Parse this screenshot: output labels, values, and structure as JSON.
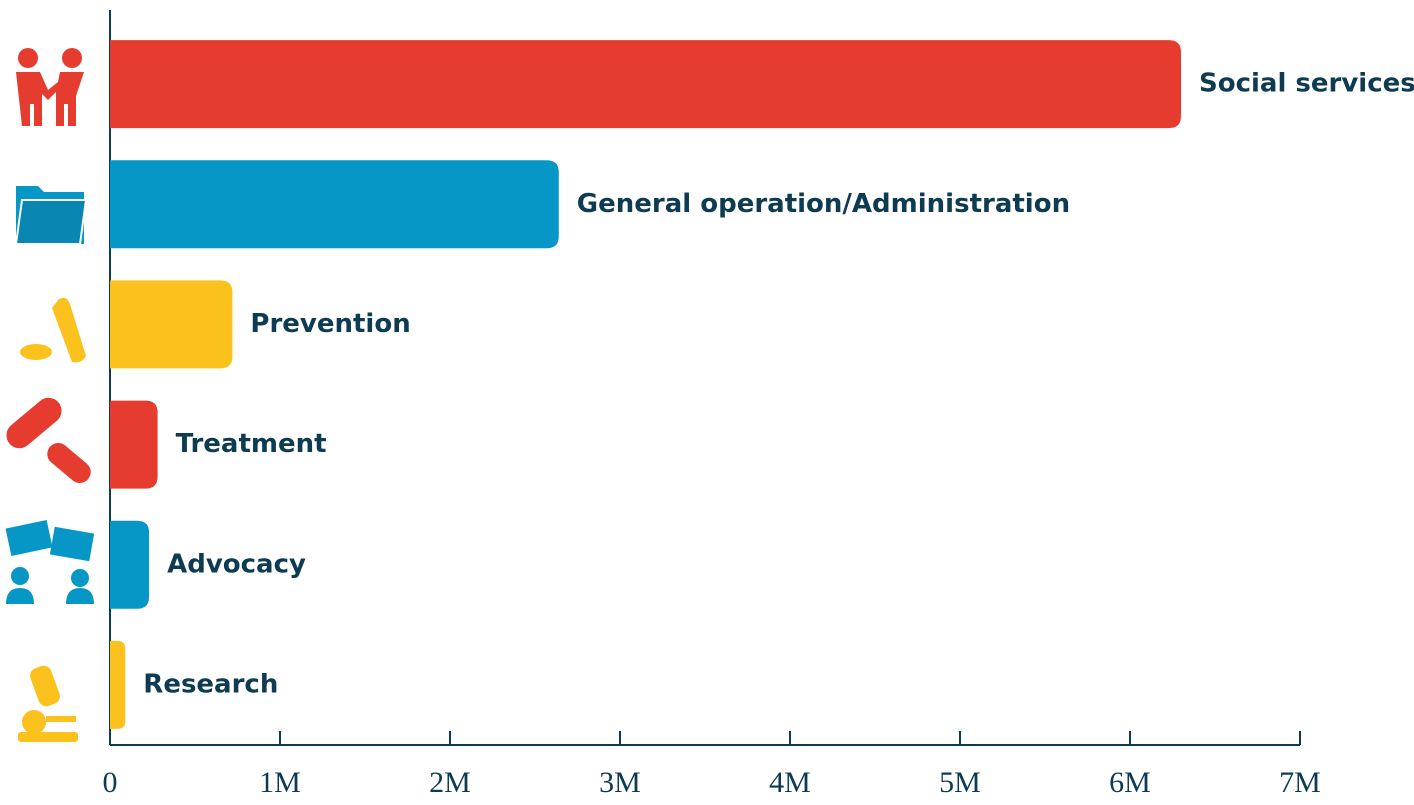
{
  "chart_data": {
    "type": "bar",
    "orientation": "horizontal",
    "categories": [
      "Social services",
      "General operation/Administration",
      "Prevention",
      "Treatment",
      "Advocacy",
      "Research"
    ],
    "values": [
      6300000,
      2640000,
      720000,
      280000,
      230000,
      90000
    ],
    "colors": [
      "#e63c2f",
      "#0797c7",
      "#fbc21d",
      "#e63c2f",
      "#0797c7",
      "#fbc21d"
    ],
    "xlim": [
      0,
      7000000
    ],
    "xticks": [
      0,
      {
        "value": 1000000,
        "label": "1M"
      },
      {
        "value": 2000000,
        "label": "2M"
      },
      {
        "value": 3000000,
        "label": "3M"
      },
      {
        "value": 4000000,
        "label": "4M"
      },
      {
        "value": 5000000,
        "label": "5M"
      },
      {
        "value": 6000000,
        "label": "6M"
      },
      {
        "value": 7000000,
        "label": "7M"
      }
    ]
  }
}
